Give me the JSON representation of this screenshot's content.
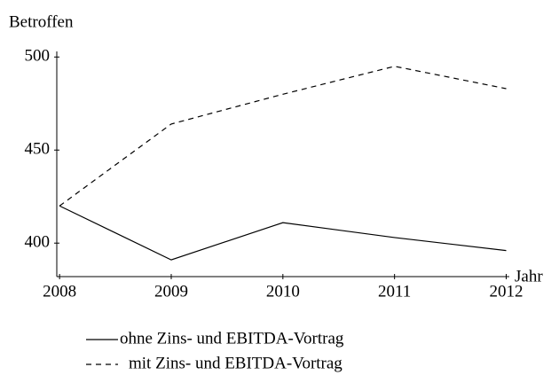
{
  "chart_data": {
    "type": "line",
    "y_label": "Betroffen",
    "x_label": "Jahr",
    "x": [
      2008,
      2009,
      2010,
      2011,
      2012
    ],
    "series": [
      {
        "name": "ohne Zins- und EBITDA-Vortrag",
        "color": "#000000",
        "dash": "solid",
        "values": [
          420,
          391,
          411,
          403,
          396
        ]
      },
      {
        "name": "mit Zins- und EBITDA-Vortrag",
        "color": "#000000",
        "dash": "dashed",
        "values": [
          420,
          464,
          480,
          495,
          483
        ]
      }
    ],
    "xlim": [
      2007.975,
      2012
    ],
    "xticks": [
      2008,
      2009,
      2010,
      2011,
      2012
    ],
    "ylim": [
      382,
      503
    ],
    "yticks": [
      400,
      450,
      500
    ],
    "grid": false
  }
}
